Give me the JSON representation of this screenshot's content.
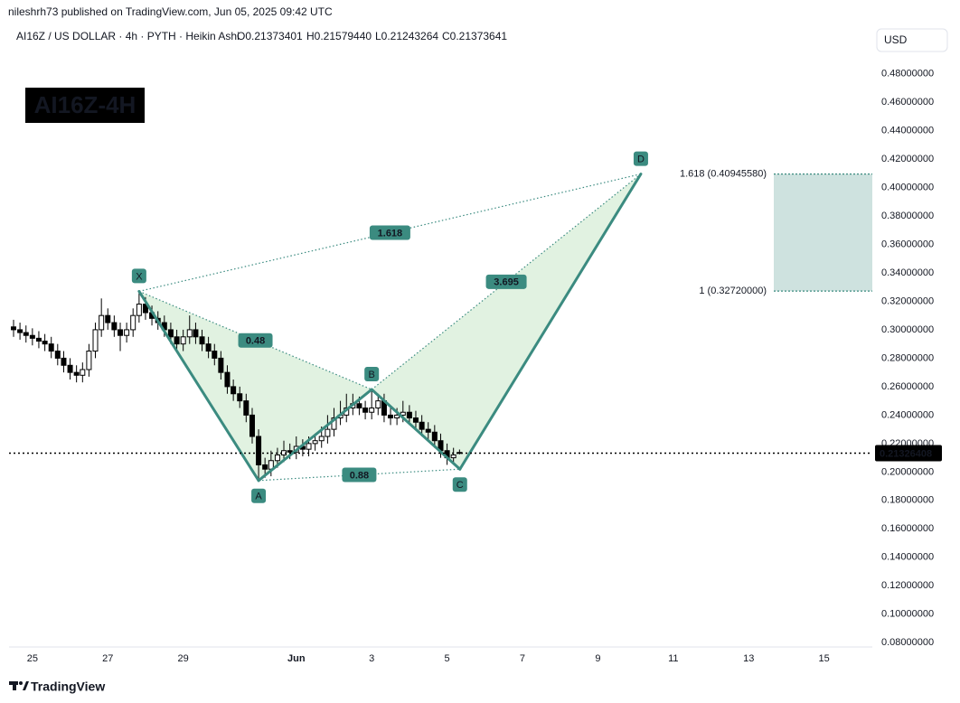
{
  "header": {
    "published": "nileshrh73 published on TradingView.com, Jun 05, 2025 09:42 UTC",
    "symbol": "AI16Z / US DOLLAR · 4h · PYTH · Heikin Ashi",
    "ohlc": [
      "O0.21373401",
      "H0.21579440",
      "L0.21243264",
      "C0.21373641"
    ],
    "currency": "USD"
  },
  "footer": {
    "brand": "TradingView"
  },
  "chart_data": {
    "type": "candlestick",
    "title": "AI16Z-4H",
    "x": [
      -0.5,
      -0.33,
      -0.17,
      0,
      0.17,
      0.33,
      0.5,
      0.67,
      0.83,
      1,
      1.17,
      1.33,
      1.5,
      1.67,
      1.83,
      2,
      2.17,
      2.33,
      2.5,
      2.67,
      2.83,
      3,
      3.17,
      3.33,
      3.5,
      3.67,
      3.83,
      4,
      4.17,
      4.33,
      4.5,
      4.67,
      4.83,
      5,
      5.17,
      5.33,
      5.5,
      5.67,
      5.83,
      6,
      6.17,
      6.33,
      6.5,
      6.67,
      6.83,
      7,
      7.17,
      7.33,
      7.5,
      7.67,
      7.83,
      8,
      8.17,
      8.33,
      8.5,
      8.67,
      8.83,
      9,
      9.17,
      9.33,
      9.5,
      9.67,
      9.83,
      10,
      10.17,
      10.33,
      10.5,
      10.67,
      10.83,
      11,
      11.17,
      11.33
    ],
    "open": [
      0.302,
      0.3,
      0.298,
      0.296,
      0.294,
      0.292,
      0.29,
      0.285,
      0.28,
      0.275,
      0.27,
      0.268,
      0.272,
      0.285,
      0.3,
      0.31,
      0.305,
      0.3,
      0.296,
      0.3,
      0.31,
      0.318,
      0.312,
      0.308,
      0.305,
      0.3,
      0.295,
      0.29,
      0.295,
      0.3,
      0.295,
      0.29,
      0.285,
      0.28,
      0.27,
      0.26,
      0.255,
      0.25,
      0.24,
      0.225,
      0.205,
      0.202,
      0.208,
      0.212,
      0.215,
      0.214,
      0.218,
      0.216,
      0.22,
      0.222,
      0.225,
      0.23,
      0.238,
      0.24,
      0.245,
      0.248,
      0.245,
      0.242,
      0.245,
      0.25,
      0.24,
      0.238,
      0.24,
      0.242,
      0.238,
      0.235,
      0.23,
      0.228,
      0.222,
      0.215,
      0.21,
      0.2137
    ],
    "high": [
      0.307,
      0.305,
      0.303,
      0.301,
      0.299,
      0.297,
      0.295,
      0.29,
      0.285,
      0.28,
      0.275,
      0.277,
      0.29,
      0.305,
      0.322,
      0.315,
      0.31,
      0.305,
      0.305,
      0.315,
      0.327,
      0.323,
      0.317,
      0.313,
      0.31,
      0.305,
      0.3,
      0.3,
      0.31,
      0.305,
      0.3,
      0.295,
      0.29,
      0.285,
      0.275,
      0.265,
      0.26,
      0.255,
      0.245,
      0.23,
      0.21,
      0.215,
      0.217,
      0.222,
      0.22,
      0.225,
      0.223,
      0.225,
      0.227,
      0.232,
      0.24,
      0.245,
      0.25,
      0.255,
      0.255,
      0.253,
      0.25,
      0.258,
      0.255,
      0.255,
      0.245,
      0.245,
      0.25,
      0.247,
      0.243,
      0.24,
      0.235,
      0.233,
      0.227,
      0.22,
      0.217,
      0.2158
    ],
    "low": [
      0.295,
      0.293,
      0.291,
      0.289,
      0.287,
      0.285,
      0.28,
      0.275,
      0.27,
      0.265,
      0.263,
      0.263,
      0.267,
      0.28,
      0.295,
      0.3,
      0.295,
      0.285,
      0.291,
      0.295,
      0.305,
      0.307,
      0.303,
      0.3,
      0.295,
      0.29,
      0.285,
      0.285,
      0.29,
      0.29,
      0.285,
      0.28,
      0.275,
      0.265,
      0.255,
      0.25,
      0.245,
      0.235,
      0.22,
      0.194,
      0.196,
      0.197,
      0.203,
      0.207,
      0.209,
      0.209,
      0.211,
      0.211,
      0.215,
      0.217,
      0.22,
      0.225,
      0.233,
      0.235,
      0.24,
      0.24,
      0.237,
      0.237,
      0.24,
      0.235,
      0.233,
      0.233,
      0.235,
      0.233,
      0.23,
      0.225,
      0.223,
      0.217,
      0.21,
      0.205,
      0.206,
      0.2124
    ],
    "close": [
      0.3,
      0.298,
      0.296,
      0.294,
      0.292,
      0.29,
      0.285,
      0.28,
      0.275,
      0.27,
      0.268,
      0.272,
      0.285,
      0.3,
      0.31,
      0.305,
      0.3,
      0.296,
      0.3,
      0.31,
      0.318,
      0.312,
      0.308,
      0.305,
      0.3,
      0.295,
      0.29,
      0.295,
      0.3,
      0.295,
      0.29,
      0.285,
      0.28,
      0.27,
      0.26,
      0.255,
      0.25,
      0.24,
      0.225,
      0.205,
      0.202,
      0.208,
      0.212,
      0.215,
      0.214,
      0.218,
      0.216,
      0.22,
      0.222,
      0.225,
      0.23,
      0.238,
      0.24,
      0.245,
      0.248,
      0.245,
      0.242,
      0.245,
      0.25,
      0.24,
      0.238,
      0.24,
      0.242,
      0.238,
      0.235,
      0.23,
      0.228,
      0.222,
      0.215,
      0.21,
      0.212,
      0.21373641
    ],
    "up_color": "#ffffff",
    "down_color": "#000000",
    "xlim": [
      -0.62,
      22.28
    ],
    "xticks": [
      {
        "value": 0,
        "label": "25"
      },
      {
        "value": 2,
        "label": "27"
      },
      {
        "value": 4,
        "label": "29"
      },
      {
        "value": 7,
        "label": "Jun"
      },
      {
        "value": 9,
        "label": "3"
      },
      {
        "value": 11,
        "label": "5"
      },
      {
        "value": 13,
        "label": "7"
      },
      {
        "value": 15,
        "label": "9"
      },
      {
        "value": 17,
        "label": "11"
      },
      {
        "value": 19,
        "label": "13"
      },
      {
        "value": 21,
        "label": "15"
      }
    ],
    "ylim": [
      0.077,
      0.514
    ],
    "yticks": [
      {
        "value": 0.48,
        "label": "0.48000000"
      },
      {
        "value": 0.46,
        "label": "0.46000000"
      },
      {
        "value": 0.44,
        "label": "0.44000000"
      },
      {
        "value": 0.42,
        "label": "0.42000000"
      },
      {
        "value": 0.4,
        "label": "0.40000000"
      },
      {
        "value": 0.38,
        "label": "0.38000000"
      },
      {
        "value": 0.36,
        "label": "0.36000000"
      },
      {
        "value": 0.34,
        "label": "0.34000000"
      },
      {
        "value": 0.32,
        "label": "0.32000000"
      },
      {
        "value": 0.3,
        "label": "0.30000000"
      },
      {
        "value": 0.28,
        "label": "0.28000000"
      },
      {
        "value": 0.26,
        "label": "0.26000000"
      },
      {
        "value": 0.24,
        "label": "0.24000000"
      },
      {
        "value": 0.22,
        "label": "0.22000000"
      },
      {
        "value": 0.2,
        "label": "0.20000000"
      },
      {
        "value": 0.18,
        "label": "0.18000000"
      },
      {
        "value": 0.16,
        "label": "0.16000000"
      },
      {
        "value": 0.14,
        "label": "0.14000000"
      },
      {
        "value": 0.12,
        "label": "0.12000000"
      },
      {
        "value": 0.1,
        "label": "0.10000000"
      },
      {
        "value": 0.08,
        "label": "0.08000000"
      }
    ],
    "grid": false,
    "last_price": {
      "value": 0.21326408,
      "label": "0.21326408"
    },
    "pattern": {
      "color": "#3b8b80",
      "points": [
        {
          "label": "X",
          "x": 2.83,
          "y": 0.327
        },
        {
          "label": "A",
          "x": 6.0,
          "y": 0.194
        },
        {
          "label": "B",
          "x": 9.0,
          "y": 0.258
        },
        {
          "label": "C",
          "x": 11.34,
          "y": 0.202
        },
        {
          "label": "D",
          "x": 16.14,
          "y": 0.4094558
        }
      ],
      "ratios": [
        "0.48",
        "0.88",
        "1.618",
        "3.695"
      ]
    },
    "fib_levels": [
      {
        "value": 0.4094558,
        "label": "1.618 (0.40945580)"
      },
      {
        "value": 0.3272,
        "label": "1 (0.32720000)"
      }
    ]
  }
}
